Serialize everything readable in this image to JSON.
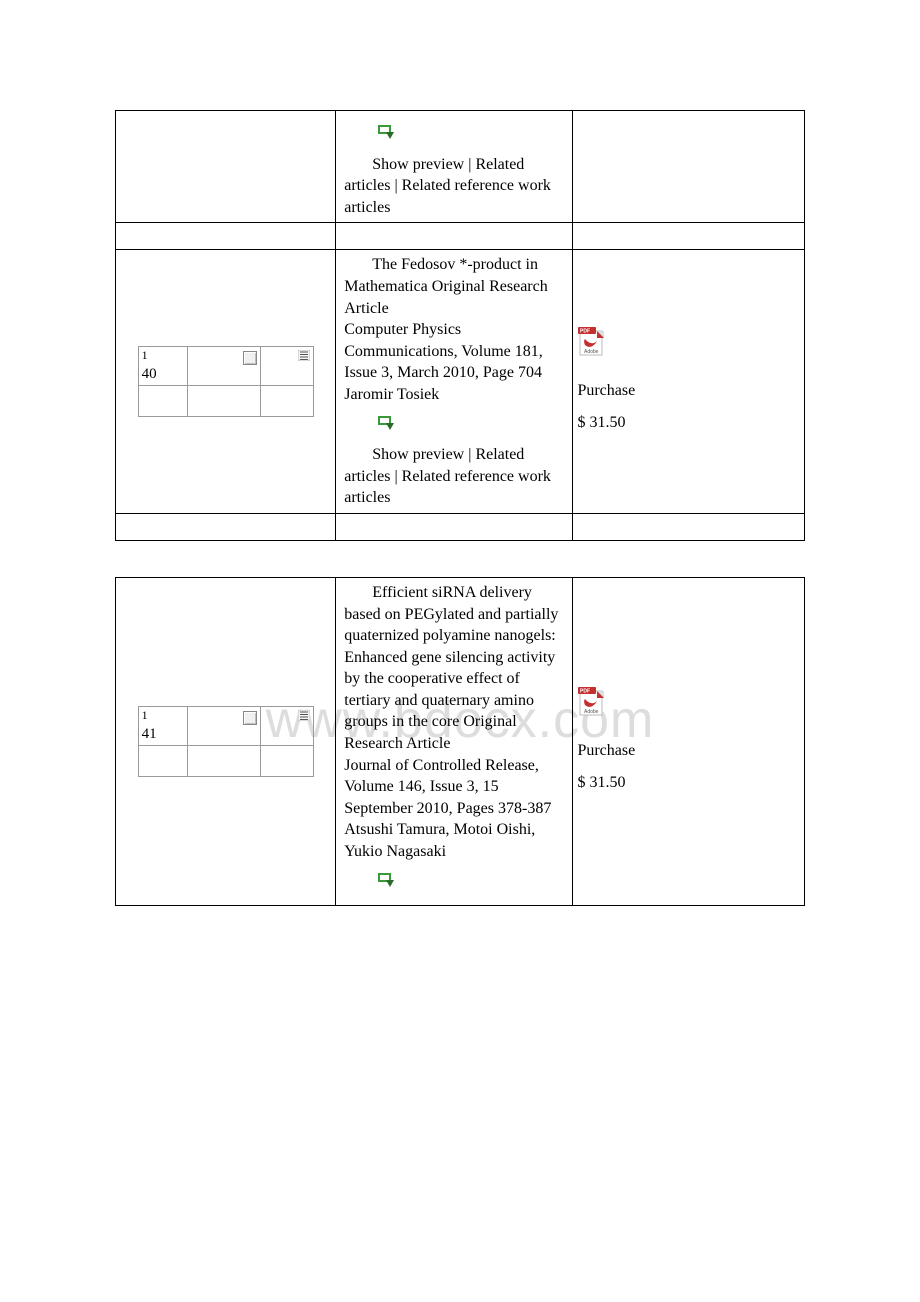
{
  "watermark_text": "www.bdocx.com",
  "rows": [
    {
      "index_number": "",
      "has_inner": false,
      "article_text": "",
      "preview_links": "Show preview  |   Related articles  |  Related reference work articles",
      "show_only_preview": true,
      "purchase_label": "",
      "price": "",
      "show_pdf": false
    },
    {
      "index_number": "140",
      "has_inner": true,
      "article_text": "The Fedosov *-product in Mathematica  Original Research Article\nComputer Physics Communications, Volume 181, Issue 3, March 2010, Page 704\nJaromir Tosiek",
      "preview_links": "Show preview  |   Related articles  |  Related reference work articles",
      "show_only_preview": false,
      "purchase_label": "Purchase",
      "price": "$ 31.50",
      "show_pdf": true
    },
    {
      "index_number": "141",
      "has_inner": true,
      "article_text": "Efficient siRNA delivery based on PEGylated and partially quaternized polyamine nanogels: Enhanced gene silencing activity by the cooperative effect of tertiary and quaternary amino groups in the core  Original Research Article\nJournal of Controlled Release, Volume 146, Issue 3, 15 September 2010, Pages 378-387\nAtsushi Tamura, Motoi Oishi, Yukio Nagasaki",
      "preview_links": "",
      "show_only_preview": false,
      "purchase_label": "Purchase",
      "price": "$ 31.50",
      "show_pdf": true
    }
  ],
  "colors": {
    "border": "#000000",
    "inner_border": "#9a9a9a",
    "watermark": "#dddddd",
    "arrow_green": "#3a9a3a",
    "arrow_dark": "#2a6a2a",
    "pdf_red": "#c43030",
    "pdf_gray": "#dedede"
  }
}
